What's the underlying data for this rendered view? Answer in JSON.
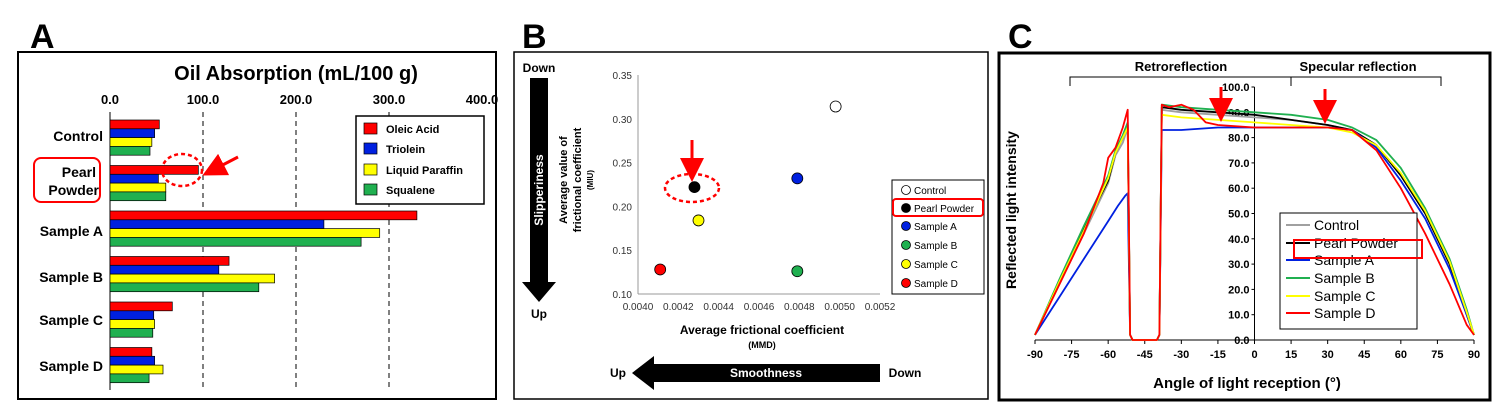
{
  "panels": [
    {
      "letter": "A",
      "title": "Oil Absorption (mL/100 g)",
      "type": "bar",
      "orientation": "horizontal",
      "xlim": [
        0,
        400
      ],
      "ticks": [
        "0.0",
        "100.0",
        "200.0",
        "300.0",
        "400.0"
      ],
      "categories": [
        "Control",
        "Pearl Powder",
        "Sample A",
        "Sample B",
        "Sample C",
        "Sample D"
      ],
      "category_lines": [
        [
          "Control"
        ],
        [
          "Pearl",
          "Powder"
        ],
        [
          "Sample A"
        ],
        [
          "Sample B"
        ],
        [
          "Sample C"
        ],
        [
          "Sample D"
        ]
      ],
      "series": [
        {
          "name": "Oleic Acid",
          "color": "#ff0000",
          "values": [
            53,
            95,
            330,
            128,
            67,
            45
          ]
        },
        {
          "name": "Triolein",
          "color": "#0020e0",
          "values": [
            48,
            52,
            230,
            117,
            47,
            48
          ]
        },
        {
          "name": "Liquid Paraffin",
          "color": "#ffff00",
          "values": [
            45,
            60,
            290,
            177,
            48,
            57
          ]
        },
        {
          "name": "Squalene",
          "color": "#20b050",
          "values": [
            43,
            60,
            270,
            160,
            46,
            42
          ]
        }
      ],
      "grid": "dashed vertical at 100, 200, 300",
      "legend": "top-right",
      "highlight": {
        "category": "Pearl Powder",
        "series": "Oleic Acid",
        "color": "#ff0000"
      }
    },
    {
      "letter": "B",
      "type": "scatter",
      "xlabel": "Average frictional coefficient",
      "xlabel_sub": "(MMD)",
      "ylabel": "Average value of frictional coefficient",
      "ylabel_sub": "(MIU)",
      "xlim": [
        0.004,
        0.0052
      ],
      "ylim": [
        0.1,
        0.35
      ],
      "xticks": [
        "0.0040",
        "0.0042",
        "0.0044",
        "0.0046",
        "0.0048",
        "0.0050",
        "0.0052"
      ],
      "yticks": [
        "0.10",
        "0.15",
        "0.20",
        "0.25",
        "0.30",
        "0.35"
      ],
      "points": [
        {
          "name": "Control",
          "x": 0.00498,
          "y": 0.314,
          "color": "#ffffff"
        },
        {
          "name": "Pearl Powder",
          "x": 0.00428,
          "y": 0.222,
          "color": "#000000"
        },
        {
          "name": "Sample A",
          "x": 0.00479,
          "y": 0.232,
          "color": "#0020e0"
        },
        {
          "name": "Sample B",
          "x": 0.00479,
          "y": 0.126,
          "color": "#20b050"
        },
        {
          "name": "Sample C",
          "x": 0.0043,
          "y": 0.184,
          "color": "#ffff00"
        },
        {
          "name": "Sample D",
          "x": 0.00411,
          "y": 0.128,
          "color": "#ff0000"
        }
      ],
      "legend": "right",
      "highlight": "Pearl Powder",
      "slipperiness": {
        "label": "Slipperiness",
        "top": "Down",
        "bottom": "Up"
      },
      "smoothness": {
        "label": "Smoothness",
        "left": "Up",
        "right": "Down"
      }
    },
    {
      "letter": "C",
      "type": "line",
      "xlabel": "Angle of light reception (°)",
      "ylabel": "Reflected light intensity",
      "xlim": [
        -90,
        90
      ],
      "ylim": [
        0,
        100
      ],
      "xticks": [
        "-90",
        "-75",
        "-60",
        "-45",
        "-30",
        "-15",
        "0",
        "15",
        "30",
        "45",
        "60",
        "75",
        "90"
      ],
      "yticks": [
        "0.0",
        "10.0",
        "20.0",
        "30.0",
        "40.0",
        "50.0",
        "60.0",
        "70.0",
        "80.0",
        "90.0",
        "100.0"
      ],
      "regions": [
        {
          "label": "Retroreflection",
          "from": -75,
          "to": 15
        },
        {
          "label": "Specular reflection",
          "from": 15,
          "to": 75
        }
      ],
      "series": [
        {
          "name": "Control",
          "color": "#a0a0a0",
          "points": [
            [
              -90,
              2
            ],
            [
              -80,
              22
            ],
            [
              -70,
              42
            ],
            [
              -60,
              62
            ],
            [
              -57,
              73
            ],
            [
              -54,
              78
            ],
            [
              -52,
              84
            ],
            [
              -51,
              2
            ],
            [
              -50,
              0
            ],
            [
              -40,
              0
            ],
            [
              -39,
              2
            ],
            [
              -38,
              91
            ],
            [
              -30,
              90
            ],
            [
              -15,
              89
            ],
            [
              0,
              88
            ],
            [
              15,
              87
            ],
            [
              30,
              85
            ],
            [
              40,
              83
            ],
            [
              50,
              77
            ],
            [
              60,
              65
            ],
            [
              70,
              50
            ],
            [
              80,
              30
            ],
            [
              87,
              10
            ],
            [
              90,
              2
            ]
          ]
        },
        {
          "name": "Pearl Powder",
          "color": "#000000",
          "points": [
            [
              -90,
              2
            ],
            [
              -80,
              23
            ],
            [
              -70,
              44
            ],
            [
              -60,
              63
            ],
            [
              -57,
              74
            ],
            [
              -54,
              80
            ],
            [
              -52,
              85
            ],
            [
              -51,
              2
            ],
            [
              -50,
              0
            ],
            [
              -40,
              0
            ],
            [
              -39,
              2
            ],
            [
              -38,
              92
            ],
            [
              -30,
              91
            ],
            [
              -15,
              90
            ],
            [
              0,
              89
            ],
            [
              15,
              87
            ],
            [
              30,
              85
            ],
            [
              40,
              83
            ],
            [
              50,
              77
            ],
            [
              60,
              65
            ],
            [
              70,
              50
            ],
            [
              80,
              30
            ],
            [
              87,
              10
            ],
            [
              90,
              2
            ]
          ]
        },
        {
          "name": "Sample A",
          "color": "#0020e0",
          "points": [
            [
              -90,
              2
            ],
            [
              -80,
              17
            ],
            [
              -70,
              32
            ],
            [
              -60,
              47
            ],
            [
              -56,
              53
            ],
            [
              -53,
              57
            ],
            [
              -52,
              58
            ],
            [
              -51,
              2
            ],
            [
              -50,
              0
            ],
            [
              -40,
              0
            ],
            [
              -39,
              2
            ],
            [
              -38,
              83
            ],
            [
              -30,
              83
            ],
            [
              -15,
              84
            ],
            [
              0,
              84
            ],
            [
              15,
              84
            ],
            [
              30,
              84
            ],
            [
              40,
              83
            ],
            [
              50,
              76
            ],
            [
              60,
              63
            ],
            [
              70,
              48
            ],
            [
              80,
              28
            ],
            [
              87,
              10
            ],
            [
              90,
              2
            ]
          ]
        },
        {
          "name": "Sample B",
          "color": "#20b050",
          "points": [
            [
              -90,
              2
            ],
            [
              -80,
              24
            ],
            [
              -70,
              45
            ],
            [
              -60,
              65
            ],
            [
              -57,
              75
            ],
            [
              -54,
              81
            ],
            [
              -52,
              86
            ],
            [
              -51,
              2
            ],
            [
              -50,
              0
            ],
            [
              -40,
              0
            ],
            [
              -39,
              2
            ],
            [
              -38,
              93
            ],
            [
              -30,
              92
            ],
            [
              -15,
              91
            ],
            [
              0,
              90
            ],
            [
              15,
              89
            ],
            [
              30,
              87
            ],
            [
              40,
              84
            ],
            [
              50,
              79
            ],
            [
              60,
              68
            ],
            [
              70,
              52
            ],
            [
              80,
              32
            ],
            [
              87,
              12
            ],
            [
              90,
              2
            ]
          ]
        },
        {
          "name": "Sample C",
          "color": "#ffff00",
          "points": [
            [
              -90,
              2
            ],
            [
              -80,
              23
            ],
            [
              -70,
              43
            ],
            [
              -60,
              64
            ],
            [
              -57,
              74
            ],
            [
              -54,
              80
            ],
            [
              -52,
              84
            ],
            [
              -51,
              2
            ],
            [
              -50,
              0
            ],
            [
              -40,
              0
            ],
            [
              -39,
              2
            ],
            [
              -38,
              89
            ],
            [
              -30,
              88
            ],
            [
              -15,
              87
            ],
            [
              0,
              86
            ],
            [
              15,
              85
            ],
            [
              30,
              84
            ],
            [
              40,
              82
            ],
            [
              50,
              77
            ],
            [
              60,
              66
            ],
            [
              70,
              51
            ],
            [
              80,
              31
            ],
            [
              87,
              11
            ],
            [
              90,
              2
            ]
          ]
        },
        {
          "name": "Sample D",
          "color": "#ff0000",
          "points": [
            [
              -90,
              2
            ],
            [
              -80,
              22
            ],
            [
              -70,
              42
            ],
            [
              -62,
              62
            ],
            [
              -60,
              72
            ],
            [
              -57,
              76
            ],
            [
              -54,
              84
            ],
            [
              -52,
              91
            ],
            [
              -51,
              2
            ],
            [
              -50,
              0
            ],
            [
              -40,
              0
            ],
            [
              -39,
              2
            ],
            [
              -38,
              93
            ],
            [
              -35,
              92
            ],
            [
              -30,
              93
            ],
            [
              -25,
              91
            ],
            [
              -20,
              86
            ],
            [
              -15,
              85
            ],
            [
              0,
              84
            ],
            [
              15,
              84
            ],
            [
              30,
              84
            ],
            [
              40,
              83
            ],
            [
              50,
              75
            ],
            [
              60,
              60
            ],
            [
              70,
              42
            ],
            [
              80,
              22
            ],
            [
              87,
              6
            ],
            [
              90,
              2
            ]
          ]
        }
      ],
      "legend": "lower-right",
      "highlight": "Pearl Powder"
    }
  ],
  "panel_texts": {
    "a": {
      "letter": "A",
      "title": "Oil Absorption (mL/100 g)",
      "tick_0": "0.0",
      "tick_1": "100.0",
      "tick_2": "200.0",
      "tick_3": "300.0",
      "tick_4": "400.0",
      "cat_0": "Control",
      "cat_1a": "Pearl",
      "cat_1b": "Powder",
      "cat_2": "Sample A",
      "cat_3": "Sample B",
      "cat_4": "Sample C",
      "cat_5": "Sample D",
      "leg_0": "Oleic Acid",
      "leg_1": "Triolein",
      "leg_2": "Liquid Paraffin",
      "leg_3": "Squalene"
    },
    "b": {
      "letter": "B",
      "down_top": "Down",
      "up_bottom": "Up",
      "slipperiness": "Slipperiness",
      "ylabel": "Average value of",
      "ylabel2": "frictional coefficient",
      "ylabel_sub": "(MIU)",
      "xlabel": "Average frictional coefficient",
      "xlabel_sub": "(MMD)",
      "smooth_left": "Up",
      "smooth_right": "Down",
      "smoothness": "Smoothness",
      "leg_0": "Control",
      "leg_1": "Pearl Powder",
      "leg_2": "Sample A",
      "leg_3": "Sample B",
      "leg_4": "Sample C",
      "leg_5": "Sample D"
    },
    "c": {
      "letter": "C",
      "region_0": "Retroreflection",
      "region_1": "Specular reflection",
      "ylabel": "Reflected light intensity",
      "xlabel": "Angle of light reception (°)",
      "leg_0": "Control",
      "leg_1": "Pearl Powder",
      "leg_2": "Sample A",
      "leg_3": "Sample B",
      "leg_4": "Sample C",
      "leg_5": "Sample D"
    }
  }
}
